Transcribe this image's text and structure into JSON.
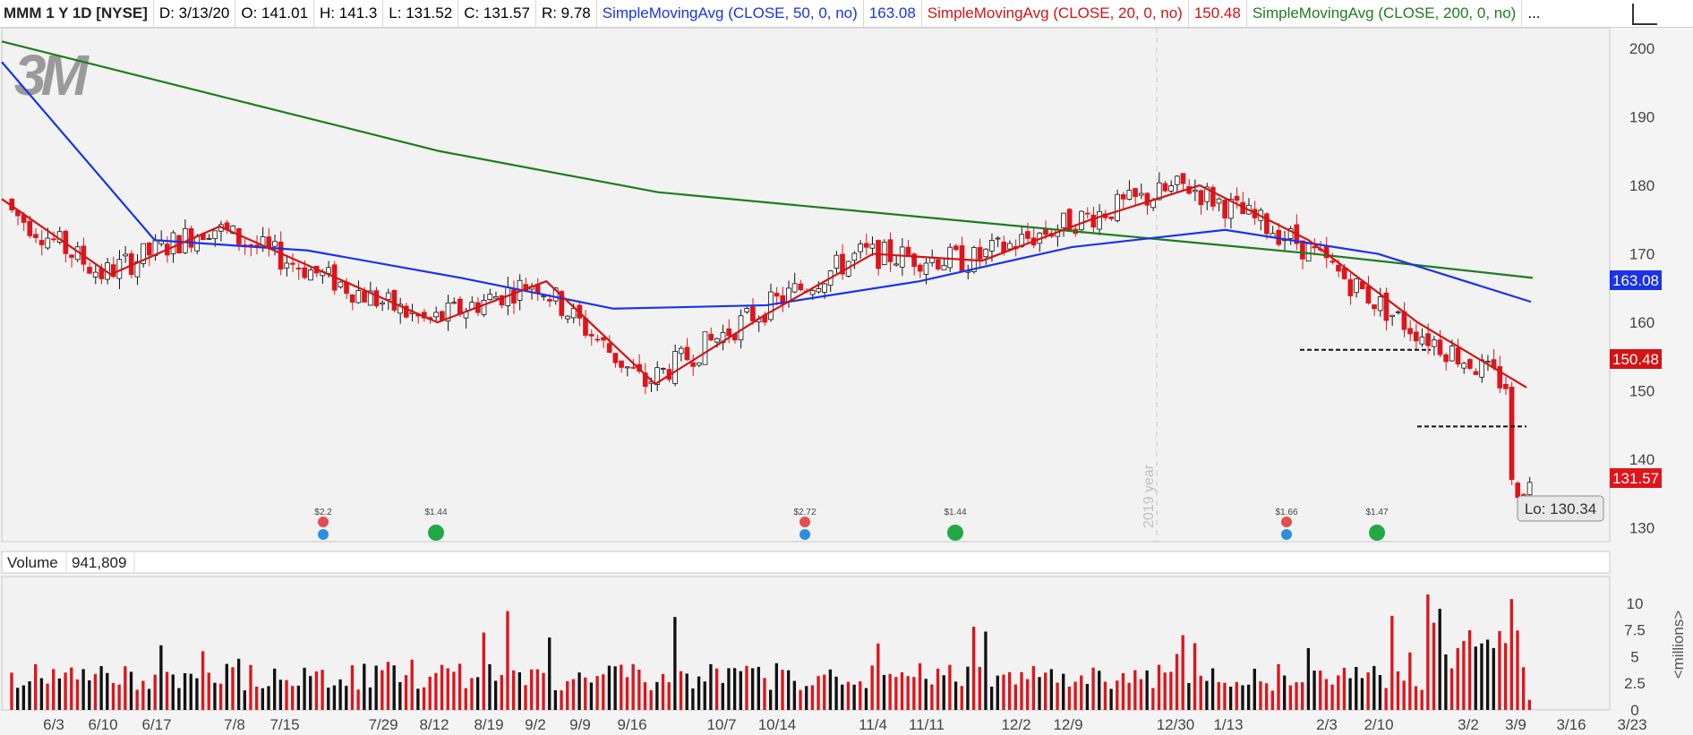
{
  "header": {
    "symbol": "MMM 1 Y 1D [NYSE]",
    "date": "D: 3/13/20",
    "open": "O: 141.01",
    "high": "H: 141.3",
    "low": "L: 131.52",
    "close": "C: 131.57",
    "range": "R: 9.78",
    "sma50_label": "SimpleMovingAvg (CLOSE, 50, 0, no)",
    "sma50_value": "163.08",
    "sma20_label": "SimpleMovingAvg (CLOSE, 20, 0, no)",
    "sma20_value": "150.48",
    "sma200_label": "SimpleMovingAvg (CLOSE, 200, 0, no)",
    "more": "..."
  },
  "icons": {
    "logo": "3m-logo",
    "drawing_tool": "drawing-tool-icon"
  },
  "colors": {
    "up_candle": "#ffffff",
    "down_candle": "#e0141b",
    "sma20": "#d21414",
    "sma50": "#1a33e8",
    "sma200": "#1d7d1d",
    "volume_up": "#111111",
    "volume_down": "#e0141b"
  },
  "chart_data": [
    {
      "type": "candlestick",
      "logo_text": "3M",
      "y_ticks": [
        "200",
        "190",
        "180",
        "170",
        "160",
        "150",
        "140",
        "130"
      ],
      "ylim": [
        128,
        203
      ],
      "period_label": "2019 year",
      "price_labels": {
        "sma50": "163.08",
        "sma20": "150.48",
        "close": "131.57"
      },
      "low_callout": "Lo: 130.34",
      "dividends": [
        {
          "label": "$2.2",
          "kind": "earnings"
        },
        {
          "label": "$1.44",
          "kind": "dividend"
        },
        {
          "label": "$2.72",
          "kind": "earnings"
        },
        {
          "label": "$1.44",
          "kind": "dividend"
        },
        {
          "label": "$1.66",
          "kind": "earnings"
        },
        {
          "label": "$1.47",
          "kind": "dividend"
        }
      ],
      "support_levels": [
        156,
        144.8
      ],
      "sma200": [
        201,
        193,
        185,
        179,
        176,
        173,
        170,
        166.5
      ],
      "sma50": [
        198,
        172,
        170.5,
        166.5,
        162,
        162.5,
        166,
        171,
        173.5,
        170,
        163
      ],
      "sma20": [
        178,
        167,
        174,
        167,
        160,
        166,
        151,
        161,
        170,
        169,
        175,
        180,
        172,
        160,
        150.5
      ]
    },
    {
      "type": "bar",
      "title": "Volume",
      "current_value": "941,809",
      "y_ticks": [
        "10",
        "7.5",
        "5",
        "2.5",
        "0"
      ],
      "ylim": [
        0,
        12.5
      ],
      "unit_label": "<millions>",
      "x_ticks": [
        "6/3",
        "6/10",
        "6/17",
        "7/8",
        "7/15",
        "7/29",
        "8/12",
        "8/19",
        "9/2",
        "9/9",
        "9/16",
        "10/7",
        "10/14",
        "11/4",
        "11/11",
        "12/2",
        "12/9",
        "12/30",
        "1/13",
        "2/3",
        "2/10",
        "3/2",
        "3/9",
        "3/16",
        "3/23"
      ]
    }
  ]
}
